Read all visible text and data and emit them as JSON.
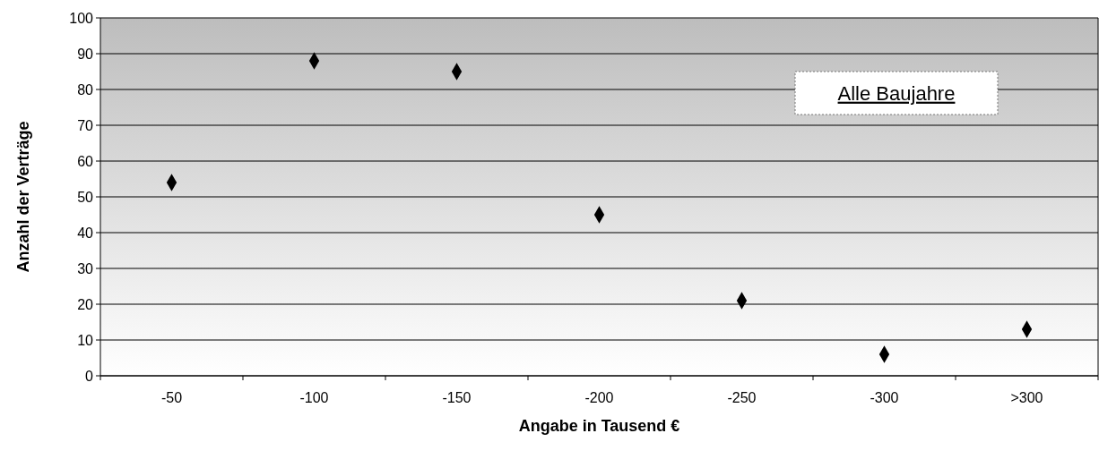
{
  "chart_data": {
    "type": "scatter",
    "categories": [
      "-50",
      "-100",
      "-150",
      "-200",
      "-250",
      "-300",
      ">300"
    ],
    "series": [
      {
        "color": "#000000",
        "values": [
          54,
          88,
          85,
          45,
          21,
          6,
          13
        ]
      }
    ],
    "ylim": [
      0,
      100
    ],
    "yticks": [
      0,
      10,
      20,
      30,
      40,
      50,
      60,
      70,
      80,
      90,
      100
    ],
    "xlabel": "Angabe in Tausend €",
    "ylabel": "Anzahl der Verträge",
    "annotations": [
      "Alle Baujahre"
    ],
    "grid": "y",
    "marker": "diamond"
  }
}
